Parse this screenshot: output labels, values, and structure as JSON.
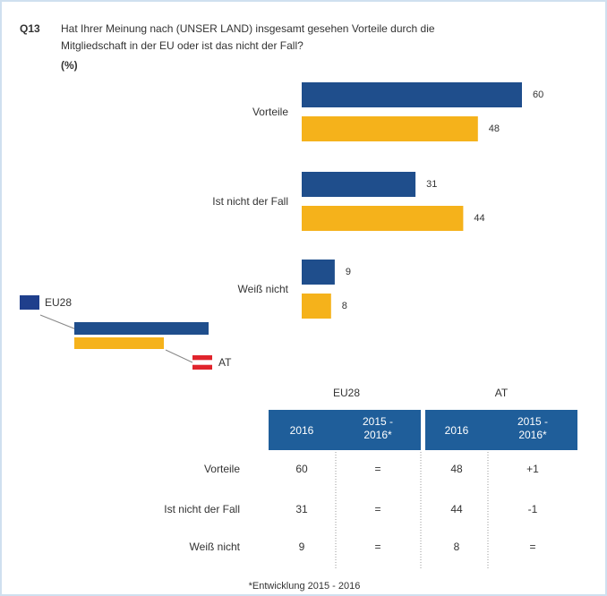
{
  "header": {
    "number": "Q13",
    "question": [
      "Hat Ihrer Meinung nach (UNSER LAND) insgesamt gesehen Vorteile durch die",
      "Mitgliedschaft in der EU oder ist das nicht der Fall?"
    ],
    "unit": "(%)"
  },
  "chart_data": {
    "type": "bar",
    "orientation": "horizontal",
    "categories": [
      "Vorteile",
      "Ist nicht der Fall",
      "Weiß nicht"
    ],
    "series": [
      {
        "name": "EU28",
        "color": "#1f4e8c",
        "values": [
          60,
          31,
          9
        ]
      },
      {
        "name": "AT",
        "color": "#f5b21b",
        "values": [
          48,
          44,
          8
        ]
      }
    ]
  },
  "table": {
    "groups": [
      "EU28",
      "AT"
    ],
    "columns": [
      "2016",
      "2015 - 2016*",
      "2016",
      "2015 - 2016*"
    ],
    "rows": [
      {
        "label": "Vorteile",
        "cells": [
          "60",
          "=",
          "48",
          "+1"
        ]
      },
      {
        "label": "Ist nicht der Fall",
        "cells": [
          "31",
          "=",
          "44",
          "-1"
        ]
      },
      {
        "label": "Weiß nicht",
        "cells": [
          "9",
          "=",
          "8",
          "="
        ]
      }
    ],
    "footnote": "*Entwicklung 2015 - 2016"
  }
}
